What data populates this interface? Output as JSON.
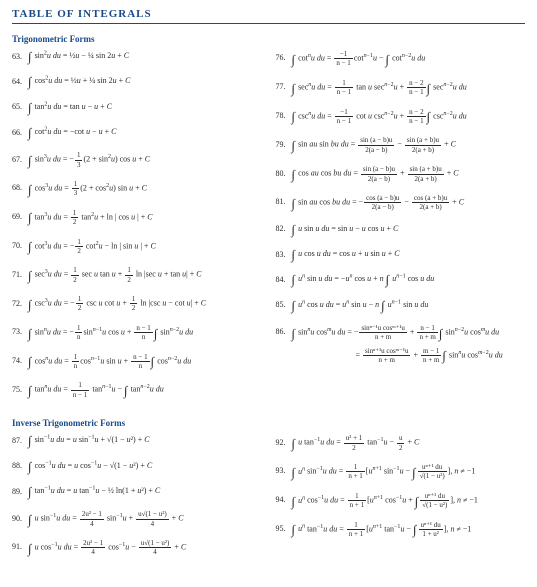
{
  "page_title": "TABLE OF INTEGRALS",
  "colors": {
    "heading": "#1a4a8a",
    "text": "#2a2a2a",
    "bg": "#ffffff"
  },
  "sections": {
    "trig": {
      "title": "Trigonometric Forms",
      "left": {
        "n63": "63.",
        "f63": "∫ sin²u du = ½u − ¼ sin 2u + C",
        "n64": "64.",
        "f64": "∫ cos²u du = ½u + ¼ sin 2u + C",
        "n65": "65.",
        "f65": "∫ tan²u du = tan u − u + C",
        "n66": "66.",
        "f66": "∫ cot²u du = −cot u − u + C",
        "n67": "67.",
        "f67a": "∫ sin³u du = −",
        "f67b": "(2 + sin²u) cos u + C",
        "n68": "68.",
        "f68a": "∫ cos³u du = ",
        "f68b": "(2 + cos²u) sin u + C",
        "n69": "69.",
        "f69a": "∫ tan³u du = ",
        "f69b": " tan²u + ln | cos u | + C",
        "n70": "70.",
        "f70a": "∫ cot³u du = −",
        "f70b": " cot²u − ln | sin u | + C",
        "n71": "71.",
        "f71a": "∫ sec³u du = ",
        "f71b": " sec u tan u + ",
        "f71c": " ln | sec u + tan u | + C",
        "n72": "72.",
        "f72a": "∫ csc³u du = −",
        "f72b": " csc u cot u + ",
        "f72c": " ln | csc u − cot u | + C",
        "n73": "73.",
        "f73a": "∫ sinⁿu du = −",
        "f73b": "sinⁿ⁻¹u cos u + ",
        "f73c": "∫ sinⁿ⁻²u du",
        "n74": "74.",
        "f74a": "∫ cosⁿu du = ",
        "f74b": "cosⁿ⁻¹u sin u + ",
        "f74c": "∫ cosⁿ⁻²u du",
        "n75": "75.",
        "f75a": "∫ tanⁿu du = ",
        "f75b": " tanⁿ⁻¹u − ∫ tanⁿ⁻²u du"
      },
      "right": {
        "n76": "76.",
        "f76a": "∫ cotⁿu du = ",
        "f76b": "cotⁿ⁻¹u − ∫ cotⁿ⁻²u du",
        "n77": "77.",
        "f77a": "∫ secⁿu du = ",
        "f77b": " tan u secⁿ⁻²u + ",
        "f77c": "∫ secⁿ⁻²u du",
        "n78": "78.",
        "f78a": "∫ cscⁿu du = ",
        "f78b": " cot u cscⁿ⁻²u + ",
        "f78c": "∫ cscⁿ⁻²u du",
        "n79": "79.",
        "f79a": "∫ sin au sin bu du = ",
        "f79b": " + C",
        "n80": "80.",
        "f80a": "∫ cos au cos bu du = ",
        "f80b": " + C",
        "n81": "81.",
        "f81a": "∫ sin au cos bu du = −",
        "f81b": " + C",
        "n82": "82.",
        "f82": "∫ u sin u du = sin u − u cos u + C",
        "n83": "83.",
        "f83": "∫ u cos u du = cos u + u sin u + C",
        "n84": "84.",
        "f84": "∫ uⁿ sin u du = −uⁿ cos u + n ∫ uⁿ⁻¹ cos u du",
        "n85": "85.",
        "f85": "∫ uⁿ cos u du = uⁿ sin u − n ∫ uⁿ⁻¹ sin u du",
        "n86": "86.",
        "f86a": "∫ sinⁿu cosᵐu du = −",
        "f86b": " + ",
        "f86c": "∫ sinⁿ⁻²u cosᵐu du",
        "f86d": "= ",
        "f86e": " + ",
        "f86f": "∫ sinⁿu cosᵐ⁻²u du"
      }
    },
    "inv": {
      "title": "Inverse Trigonometric Forms",
      "left": {
        "n87": "87.",
        "f87": "∫ sin⁻¹u du = u sin⁻¹u + √(1 − u²) + C",
        "n88": "88.",
        "f88": "∫ cos⁻¹u du = u cos⁻¹u − √(1 − u²) + C",
        "n89": "89.",
        "f89": "∫ tan⁻¹u du = u tan⁻¹u − ½ ln(1 + u²) + C",
        "n90": "90.",
        "f90a": "∫ u sin⁻¹u du = ",
        "f90b": " sin⁻¹u + ",
        "f90c": " + C",
        "n91": "91.",
        "f91a": "∫ u cos⁻¹u du = ",
        "f91b": " cos⁻¹u − ",
        "f91c": " + C"
      },
      "right": {
        "n92": "92.",
        "f92a": "∫ u tan⁻¹u du = ",
        "f92b": " tan⁻¹u − ",
        "f92c": " + C",
        "n93": "93.",
        "f93a": "∫ uⁿ sin⁻¹u du = ",
        "f93b": "[ uⁿ⁺¹ sin⁻¹u − ∫",
        "f93c": "],  n ≠ −1",
        "n94": "94.",
        "f94a": "∫ uⁿ cos⁻¹u du = ",
        "f94b": "[ uⁿ⁺¹ cos⁻¹u + ∫",
        "f94c": "],  n ≠ −1",
        "n95": "95.",
        "f95a": "∫ uⁿ tan⁻¹u du = ",
        "f95b": "[ uⁿ⁺¹ tan⁻¹u − ∫",
        "f95c": "],  n ≠ −1"
      }
    }
  },
  "fracs": {
    "third_n": "1",
    "third_d": "3",
    "half_n": "1",
    "half_d": "2",
    "nm1_n": "−1",
    "nm1_d": "n − 1",
    "1nm1_n": "1",
    "1nm1_d": "n − 1",
    "nm2_n": "n − 2",
    "nm2_d": "n − 1",
    "1n_n": "1",
    "1n_d": "n",
    "nn1_n": "n − 1",
    "nn1_d": "n",
    "sab1_n": "sin (a − b)u",
    "sab1_d": "2(a − b)",
    "sab2_n": "sin (a + b)u",
    "sab2_d": "2(a + b)",
    "cab1_n": "cos (a − b)u",
    "cab1_d": "2(a − b)",
    "cab2_n": "cos (a + b)u",
    "cab2_d": "2(a + b)",
    "snm1_n": "sinⁿ⁻¹u cosᵐ⁺¹u",
    "snm1_d": "n + m",
    "nm1nm_n": "n − 1",
    "nm1nm_d": "n + m",
    "snm2_n": "sinⁿ⁺¹u cosᵐ⁻¹u",
    "snm2_d": "n + m",
    "mm1nm_n": "m − 1",
    "mm1nm_d": "n + m",
    "2u1_n": "2u² − 1",
    "2u1_d": "4",
    "usq_n": "u√(1 − u²)",
    "usq_d": "4",
    "u21_n": "u² + 1",
    "u21_d": "2",
    "u2_n": "u",
    "u2_d": "2",
    "1np1_n": "1",
    "1np1_d": "n + 1",
    "undu_n": "uⁿ⁺¹ du",
    "undu_d": "√(1 − u²)",
    "undu2_n": "uⁿ⁺¹ du",
    "undu2_d": "1 + u²"
  }
}
